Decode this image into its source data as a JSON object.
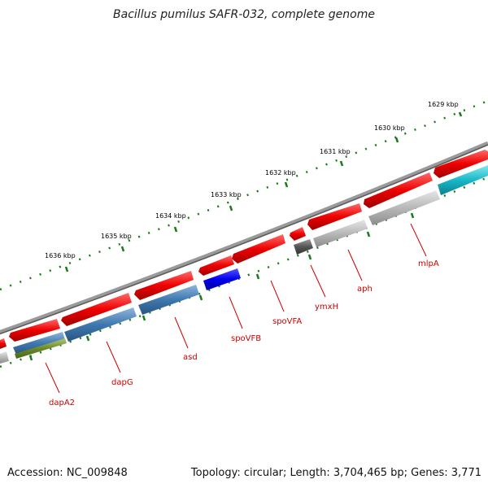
{
  "title": "Bacillus pumilus SAFR-032, complete genome",
  "footer": {
    "accession": "Accession: NC_009848",
    "stats": "Topology: circular; Length: 3,704,465 bp; Genes: 3,771"
  },
  "colors": {
    "cds": "#ee0000",
    "backbone": "#7a7a7a",
    "ticks": "#1a7a1a",
    "label_line": "#cc0000",
    "steelblue": "#3f78b0",
    "blue": "#0000ee",
    "grey": "#b8b8b8",
    "darkgrey": "#555555",
    "cyan": "#18b8c8",
    "olive": "#6a8a2a"
  },
  "kbp_labels": [
    "1629 kbp",
    "1630 kbp",
    "1631 kbp",
    "1632 kbp",
    "1633 kbp",
    "1634 kbp",
    "1635 kbp",
    "1636 kbp"
  ],
  "gene_labels": [
    "mlpA",
    "aph",
    "ymxH",
    "spoVFA",
    "spoVFB",
    "asd",
    "dapG",
    "dapA2"
  ]
}
